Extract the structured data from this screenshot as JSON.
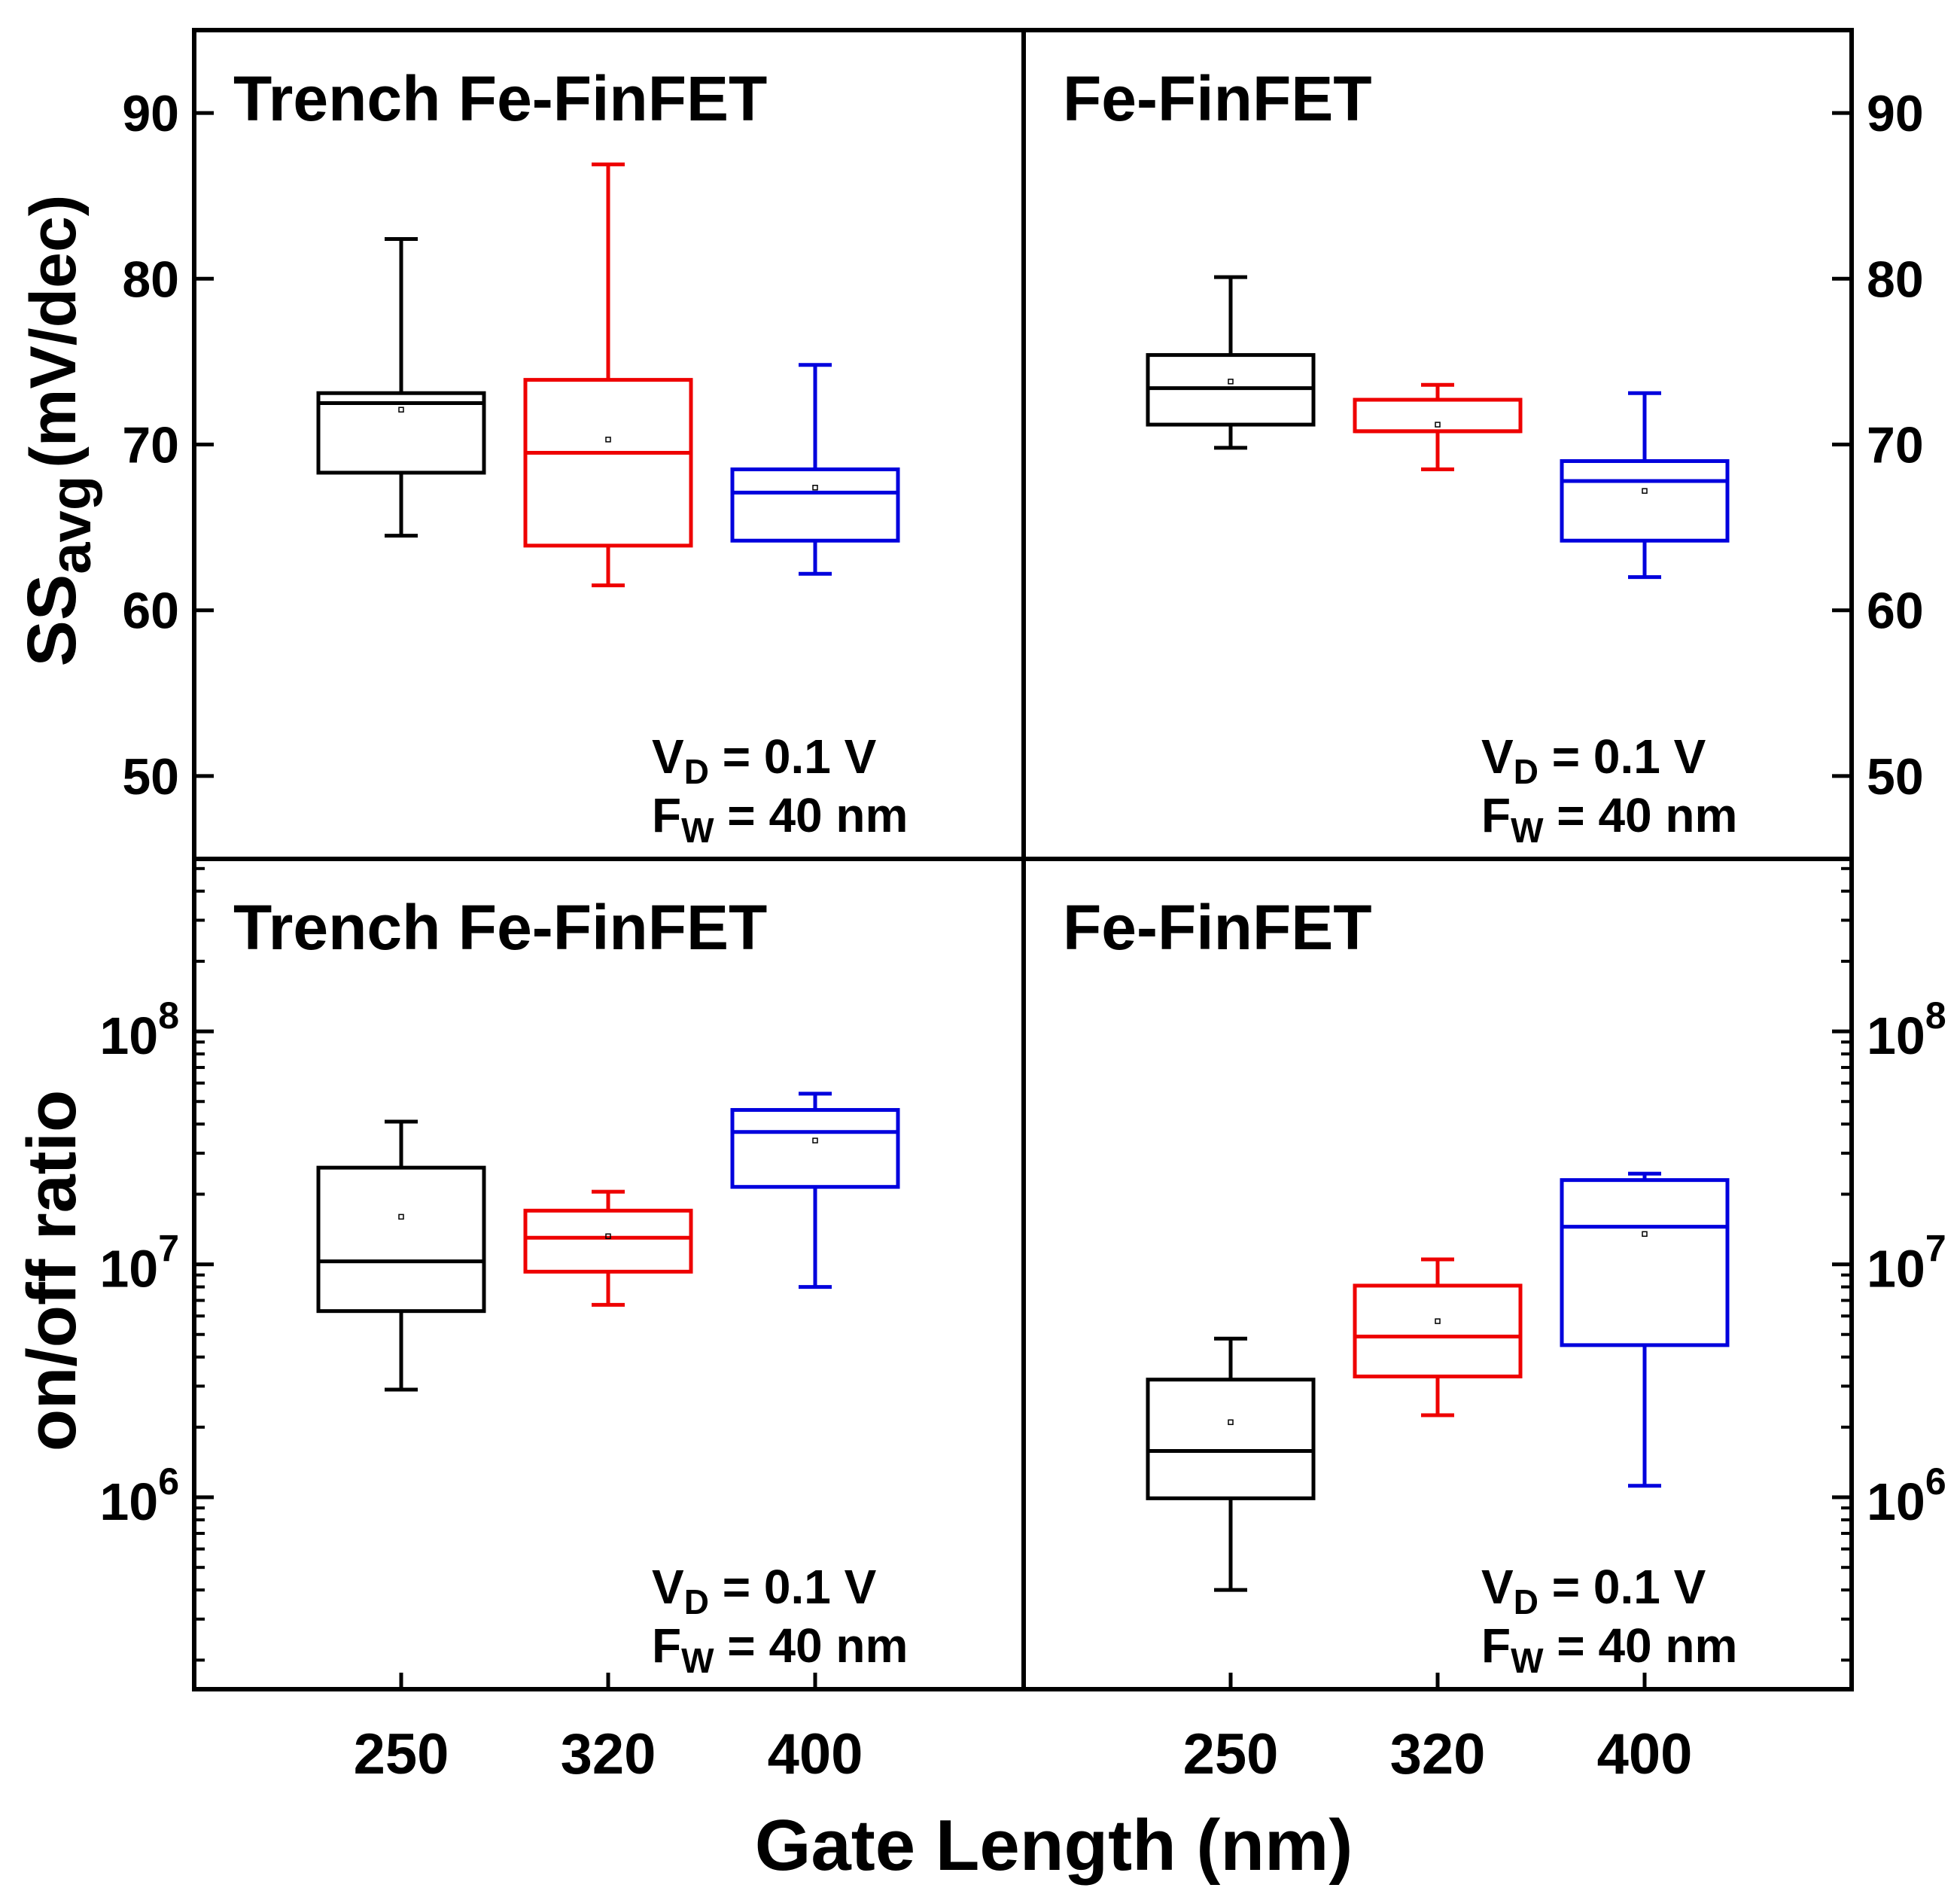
{
  "figure": {
    "x_axis_title": "Gate Length (nm)",
    "top_ylabel_main": "SS",
    "top_ylabel_sub": "avg",
    "top_ylabel_unit": "(mV/dec)",
    "bottom_ylabel": "on/off ratio"
  },
  "colors": {
    "250": "#000000",
    "320": "#ee0000",
    "400": "#0000dd"
  },
  "chart_data": [
    {
      "type": "box",
      "panel": "top-left",
      "title": "Trench Fe-FinFET",
      "ylabel": "SSavg (mV/dec)",
      "ylim": [
        45,
        95
      ],
      "yticks": [
        50,
        60,
        70,
        80,
        90
      ],
      "yscale": "linear",
      "categories": [
        "250",
        "320",
        "400"
      ],
      "annotation": {
        "l1_main": "V",
        "l1_sub": "D",
        "l1_rest": " = 0.1 V",
        "l2_main": "F",
        "l2_sub": "W",
        "l2_rest": " = 40 nm"
      },
      "boxes": [
        {
          "category": "250",
          "min": 64.5,
          "q1": 68.3,
          "median": 72.5,
          "q3": 73.1,
          "max": 82.4,
          "mean": 72.1
        },
        {
          "category": "320",
          "min": 61.5,
          "q1": 63.9,
          "median": 69.5,
          "q3": 73.9,
          "max": 86.9,
          "mean": 70.3
        },
        {
          "category": "400",
          "min": 62.2,
          "q1": 64.2,
          "median": 67.1,
          "q3": 68.5,
          "max": 74.8,
          "mean": 67.4
        }
      ]
    },
    {
      "type": "box",
      "panel": "top-right",
      "title": "Fe-FinFET",
      "ylabel": "SSavg (mV/dec)",
      "ylim": [
        45,
        95
      ],
      "yticks": [
        50,
        60,
        70,
        80,
        90
      ],
      "yscale": "linear",
      "categories": [
        "250",
        "320",
        "400"
      ],
      "annotation": {
        "l1_main": "V",
        "l1_sub": "D",
        "l1_rest": " = 0.1 V",
        "l2_main": "F",
        "l2_sub": "W",
        "l2_rest": " = 40 nm"
      },
      "boxes": [
        {
          "category": "250",
          "min": 69.8,
          "q1": 71.2,
          "median": 73.4,
          "q3": 75.4,
          "max": 80.1,
          "mean": 73.8
        },
        {
          "category": "320",
          "min": 68.5,
          "q1": 70.8,
          "median": 70.8,
          "q3": 72.7,
          "max": 73.6,
          "mean": 71.2
        },
        {
          "category": "400",
          "min": 62.0,
          "q1": 64.2,
          "median": 67.8,
          "q3": 69.0,
          "max": 73.1,
          "mean": 67.2
        }
      ]
    },
    {
      "type": "box",
      "panel": "bottom-left",
      "title": "Trench Fe-FinFET",
      "ylabel": "on/off ratio",
      "ylim": [
        150000,
        550000000
      ],
      "yticks": [
        1000000,
        10000000,
        100000000
      ],
      "ytick_labels": [
        {
          "base": "10",
          "exp": "6"
        },
        {
          "base": "10",
          "exp": "7"
        },
        {
          "base": "10",
          "exp": "8"
        }
      ],
      "yscale": "log",
      "categories": [
        "250",
        "320",
        "400"
      ],
      "annotation": {
        "l1_main": "V",
        "l1_sub": "D",
        "l1_rest": " = 0.1 V",
        "l2_main": "F",
        "l2_sub": "W",
        "l2_rest": " = 40 nm"
      },
      "boxes": [
        {
          "category": "250",
          "min": 2900000,
          "q1": 6300000,
          "median": 10300000,
          "q3": 26000000,
          "max": 41000000,
          "mean": 16000000
        },
        {
          "category": "320",
          "min": 6700000,
          "q1": 9300000,
          "median": 13000000,
          "q3": 17000000,
          "max": 20500000,
          "mean": 13200000
        },
        {
          "category": "400",
          "min": 8000000,
          "q1": 21500000,
          "median": 37000000,
          "q3": 46000000,
          "max": 54000000,
          "mean": 34000000
        }
      ]
    },
    {
      "type": "box",
      "panel": "bottom-right",
      "title": "Fe-FinFET",
      "ylabel": "on/off ratio",
      "ylim": [
        150000,
        550000000
      ],
      "yticks": [
        1000000,
        10000000,
        100000000
      ],
      "ytick_labels": [
        {
          "base": "10",
          "exp": "6"
        },
        {
          "base": "10",
          "exp": "7"
        },
        {
          "base": "10",
          "exp": "8"
        }
      ],
      "yscale": "log",
      "categories": [
        "250",
        "320",
        "400"
      ],
      "annotation": {
        "l1_main": "V",
        "l1_sub": "D",
        "l1_rest": " = 0.1 V",
        "l2_main": "F",
        "l2_sub": "W",
        "l2_rest": " = 40 nm"
      },
      "boxes": [
        {
          "category": "250",
          "min": 400000,
          "q1": 990000,
          "median": 1580000,
          "q3": 3200000,
          "max": 4800000,
          "mean": 2100000
        },
        {
          "category": "320",
          "min": 2250000,
          "q1": 3300000,
          "median": 4900000,
          "q3": 8100000,
          "max": 10500000,
          "mean": 5700000
        },
        {
          "category": "400",
          "min": 1120000,
          "q1": 4500000,
          "median": 14500000,
          "q3": 23000000,
          "max": 24500000,
          "mean": 13500000
        }
      ]
    }
  ]
}
